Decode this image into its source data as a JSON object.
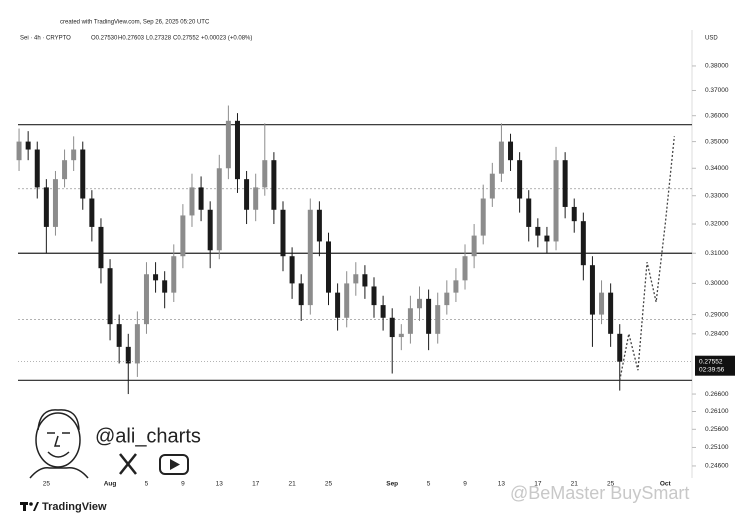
{
  "header": {
    "created": "created with TradingView.com, Sep 26, 2025 05:20 UTC",
    "symbol": "Sei · 4h · CRYPTO",
    "ohlc": [
      "O0.27530",
      "H0.27603",
      "L0.27328",
      "C0.27552",
      "+0.00023 (+0.08%)"
    ],
    "currency": "USD"
  },
  "branding": {
    "handle": "@ali_charts",
    "logo": "TradingView",
    "watermark": "@BeMaster BuySmart"
  },
  "chart_data": {
    "type": "candlestick",
    "log_scale": true,
    "categories": [
      null,
      null,
      null,
      "25",
      null,
      null,
      null,
      null,
      null,
      null,
      "Aug",
      null,
      null,
      null,
      "5",
      null,
      null,
      null,
      "9",
      null,
      null,
      null,
      "13",
      null,
      null,
      null,
      "17",
      null,
      null,
      null,
      "21",
      null,
      null,
      null,
      "25",
      null,
      null,
      null,
      null,
      null,
      null,
      "Sep",
      null,
      null,
      null,
      "5",
      null,
      null,
      null,
      "9",
      null,
      null,
      null,
      "13",
      null,
      null,
      null,
      "17",
      null,
      null,
      null,
      "21",
      null,
      null,
      null,
      "25",
      null,
      null,
      null,
      null,
      null,
      "Oct",
      null,
      null
    ],
    "open": [
      0.343,
      0.35,
      0.347,
      0.333,
      0.319,
      0.336,
      0.343,
      0.347,
      0.329,
      0.319,
      0.305,
      0.287,
      0.28,
      0.275,
      0.287,
      0.303,
      0.301,
      0.297,
      0.309,
      0.323,
      0.333,
      0.325,
      0.311,
      0.34,
      0.358,
      0.336,
      0.325,
      0.333,
      0.343,
      0.325,
      0.309,
      0.3,
      0.293,
      0.325,
      0.314,
      0.297,
      0.289,
      0.3,
      0.303,
      0.299,
      0.293,
      0.289,
      0.283,
      0.284,
      0.292,
      0.295,
      0.284,
      0.293,
      0.297,
      0.301,
      0.309,
      0.316,
      0.329,
      0.338,
      0.35,
      0.343,
      0.329,
      0.319,
      0.316,
      0.314,
      0.343,
      0.326,
      0.321,
      0.306,
      0.29,
      0.297,
      0.284,
      null,
      null,
      null,
      null,
      null,
      null,
      null
    ],
    "high": [
      0.355,
      0.354,
      0.35,
      0.336,
      0.339,
      0.347,
      0.352,
      0.35,
      0.332,
      0.322,
      0.308,
      0.29,
      0.284,
      0.291,
      0.307,
      0.307,
      0.304,
      0.313,
      0.327,
      0.338,
      0.337,
      0.328,
      0.345,
      0.364,
      0.361,
      0.339,
      0.338,
      0.357,
      0.346,
      0.328,
      0.312,
      0.303,
      0.329,
      0.328,
      0.317,
      0.3,
      0.304,
      0.307,
      0.306,
      0.302,
      0.296,
      0.292,
      0.287,
      0.296,
      0.299,
      0.298,
      0.297,
      0.301,
      0.305,
      0.313,
      0.32,
      0.334,
      0.342,
      0.357,
      0.353,
      0.346,
      0.332,
      0.322,
      0.319,
      0.348,
      0.346,
      0.329,
      0.324,
      0.309,
      0.301,
      0.3,
      0.287,
      null,
      null,
      null,
      null,
      null,
      null,
      null
    ],
    "low": [
      0.339,
      0.343,
      0.329,
      0.31,
      0.316,
      0.333,
      0.339,
      0.325,
      0.314,
      0.3,
      0.282,
      0.275,
      0.266,
      0.271,
      0.284,
      0.297,
      0.292,
      0.294,
      0.305,
      0.319,
      0.321,
      0.305,
      0.308,
      0.336,
      0.331,
      0.32,
      0.321,
      0.33,
      0.32,
      0.304,
      0.295,
      0.288,
      0.29,
      0.309,
      0.293,
      0.285,
      0.286,
      0.296,
      0.295,
      0.289,
      0.285,
      0.272,
      0.279,
      0.281,
      0.288,
      0.279,
      0.281,
      0.29,
      0.294,
      0.298,
      0.305,
      0.313,
      0.326,
      0.335,
      0.339,
      0.324,
      0.314,
      0.312,
      0.31,
      0.311,
      0.322,
      0.317,
      0.301,
      0.28,
      0.287,
      0.28,
      0.267,
      null,
      null,
      null,
      null,
      null,
      null,
      null
    ],
    "close": [
      0.35,
      0.347,
      0.333,
      0.319,
      0.336,
      0.343,
      0.347,
      0.329,
      0.319,
      0.305,
      0.287,
      0.28,
      0.275,
      0.287,
      0.303,
      0.301,
      0.297,
      0.309,
      0.323,
      0.333,
      0.325,
      0.311,
      0.34,
      0.358,
      0.336,
      0.325,
      0.333,
      0.343,
      0.325,
      0.309,
      0.3,
      0.293,
      0.325,
      0.314,
      0.297,
      0.289,
      0.3,
      0.303,
      0.299,
      0.293,
      0.289,
      0.283,
      0.284,
      0.292,
      0.295,
      0.284,
      0.293,
      0.297,
      0.301,
      0.309,
      0.316,
      0.329,
      0.338,
      0.35,
      0.343,
      0.329,
      0.319,
      0.316,
      0.314,
      0.343,
      0.326,
      0.321,
      0.306,
      0.29,
      0.297,
      0.284,
      0.27552,
      null,
      null,
      null,
      null,
      null,
      null,
      null
    ],
    "projection": [
      null,
      null,
      null,
      null,
      null,
      null,
      null,
      null,
      null,
      null,
      null,
      null,
      null,
      null,
      null,
      null,
      null,
      null,
      null,
      null,
      null,
      null,
      null,
      null,
      null,
      null,
      null,
      null,
      null,
      null,
      null,
      null,
      null,
      null,
      null,
      null,
      null,
      null,
      null,
      null,
      null,
      null,
      null,
      null,
      null,
      null,
      null,
      null,
      null,
      null,
      null,
      null,
      null,
      null,
      null,
      null,
      null,
      null,
      null,
      null,
      null,
      null,
      null,
      null,
      null,
      null,
      0.27,
      0.284,
      0.273,
      0.307,
      0.294,
      0.32,
      0.352,
      null
    ],
    "levels": [
      {
        "value": 0.3565,
        "style": "solid"
      },
      {
        "value": 0.3325,
        "style": "dotted"
      },
      {
        "value": 0.31,
        "style": "solid"
      },
      {
        "value": 0.2885,
        "style": "dotted"
      },
      {
        "value": 0.27,
        "style": "solid"
      }
    ],
    "last_price": 0.27552,
    "countdown": "02:39:56",
    "up_color": "#8c8c8c",
    "down_color": "#1a1a1a",
    "ylim": [
      0.2428,
      0.393
    ],
    "yticks": [
      {
        "value": 0.38,
        "label": "0.38000"
      },
      {
        "value": 0.37,
        "label": "0.37000"
      },
      {
        "value": 0.36,
        "label": "0.36000"
      },
      {
        "value": 0.35,
        "label": "0.35000"
      },
      {
        "value": 0.34,
        "label": "0.34000"
      },
      {
        "value": 0.33,
        "label": "0.33000"
      },
      {
        "value": 0.32,
        "label": "0.32000"
      },
      {
        "value": 0.31,
        "label": "0.31000"
      },
      {
        "value": 0.3,
        "label": "0.30000"
      },
      {
        "value": 0.29,
        "label": "0.29000"
      },
      {
        "value": 0.284,
        "label": "0.28400"
      },
      {
        "value": 0.266,
        "label": "0.26600"
      },
      {
        "value": 0.261,
        "label": "0.26100"
      },
      {
        "value": 0.256,
        "label": "0.25600"
      },
      {
        "value": 0.251,
        "label": "0.25100"
      },
      {
        "value": 0.246,
        "label": "0.24600"
      }
    ]
  }
}
